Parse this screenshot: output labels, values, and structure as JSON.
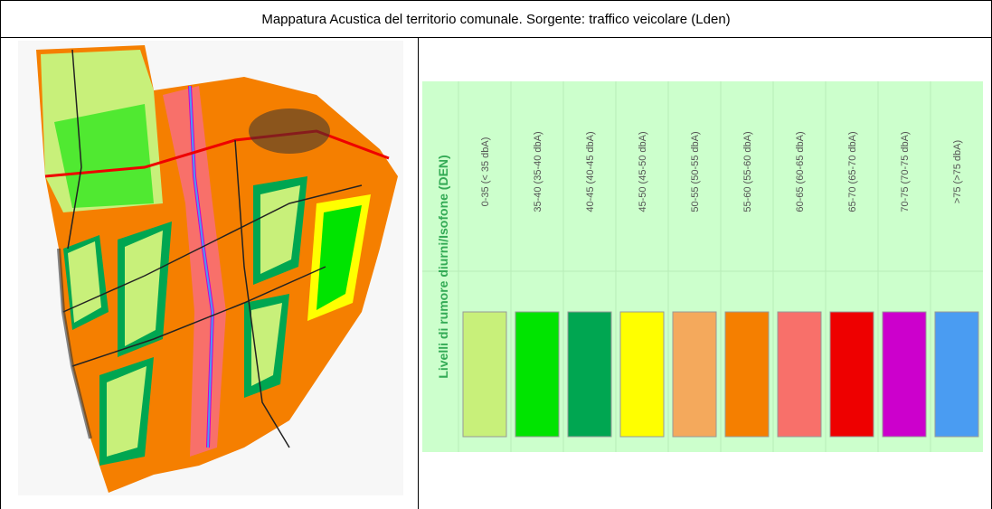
{
  "header": {
    "title": "Mappatura Acustica del territorio comunale. Sorgente: traffico veicolare (Lden)"
  },
  "legend": {
    "title": "Livelli di rumore diurni/Isofone (DEN)",
    "items": [
      {
        "label": "0-35 (< 35 dbA)",
        "color": "#c8f07a"
      },
      {
        "label": "35-40 (35-40 dbA)",
        "color": "#00e400"
      },
      {
        "label": "40-45 (40-45 dbA)",
        "color": "#00a651"
      },
      {
        "label": "45-50 (45-50 dbA)",
        "color": "#ffff00"
      },
      {
        "label": "50-55 (50-55 dbA)",
        "color": "#f4a95c"
      },
      {
        "label": "55-60 (55-60 dbA)",
        "color": "#f57f00"
      },
      {
        "label": "60-65 (60-65 dbA)",
        "color": "#f8706a"
      },
      {
        "label": "65-70 (65-70 dbA)",
        "color": "#ee0000"
      },
      {
        "label": "70-75 (70-75 dbA)",
        "color": "#cc00cc"
      },
      {
        "label": ">75 (>75 dbA)",
        "color": "#4a9cf2"
      }
    ]
  }
}
